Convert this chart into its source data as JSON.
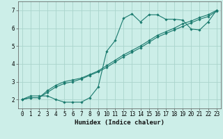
{
  "title": "",
  "xlabel": "Humidex (Indice chaleur)",
  "bg_color": "#cceee8",
  "grid_color": "#aad4cc",
  "line_color": "#1a7a6e",
  "xlim": [
    -0.5,
    23.5
  ],
  "ylim": [
    1.5,
    7.5
  ],
  "xticks": [
    0,
    1,
    2,
    3,
    4,
    5,
    6,
    7,
    8,
    9,
    10,
    11,
    12,
    13,
    14,
    15,
    16,
    17,
    18,
    19,
    20,
    21,
    22,
    23
  ],
  "yticks": [
    2,
    3,
    4,
    5,
    6,
    7
  ],
  "line1_x": [
    0,
    1,
    2,
    3,
    4,
    5,
    6,
    7,
    8,
    9,
    10,
    11,
    12,
    13,
    14,
    15,
    16,
    17,
    18,
    19,
    20,
    21,
    22,
    23
  ],
  "line1_y": [
    2.0,
    2.2,
    2.2,
    2.2,
    2.0,
    1.85,
    1.85,
    1.85,
    2.1,
    2.7,
    4.7,
    5.3,
    6.55,
    6.8,
    6.35,
    6.75,
    6.75,
    6.5,
    6.5,
    6.45,
    5.95,
    5.9,
    6.35,
    7.0
  ],
  "line2_x": [
    0,
    1,
    2,
    3,
    4,
    5,
    6,
    7,
    8,
    9,
    10,
    11,
    12,
    13,
    14,
    15,
    16,
    17,
    18,
    19,
    20,
    21,
    22,
    23
  ],
  "line2_y": [
    2.0,
    2.1,
    2.1,
    2.5,
    2.8,
    3.0,
    3.1,
    3.2,
    3.4,
    3.6,
    3.9,
    4.2,
    4.5,
    4.75,
    5.0,
    5.3,
    5.6,
    5.8,
    6.0,
    6.25,
    6.4,
    6.6,
    6.75,
    7.0
  ],
  "line3_x": [
    0,
    1,
    2,
    3,
    4,
    5,
    6,
    7,
    8,
    9,
    10,
    11,
    12,
    13,
    14,
    15,
    16,
    17,
    18,
    19,
    20,
    21,
    22,
    23
  ],
  "line3_y": [
    2.0,
    2.1,
    2.1,
    2.4,
    2.7,
    2.9,
    3.0,
    3.15,
    3.35,
    3.55,
    3.8,
    4.1,
    4.4,
    4.65,
    4.9,
    5.2,
    5.5,
    5.7,
    5.9,
    6.1,
    6.3,
    6.5,
    6.65,
    6.95
  ],
  "tick_fontsize": 5.5,
  "xlabel_fontsize": 6.5,
  "lw": 0.8,
  "ms": 1.8
}
